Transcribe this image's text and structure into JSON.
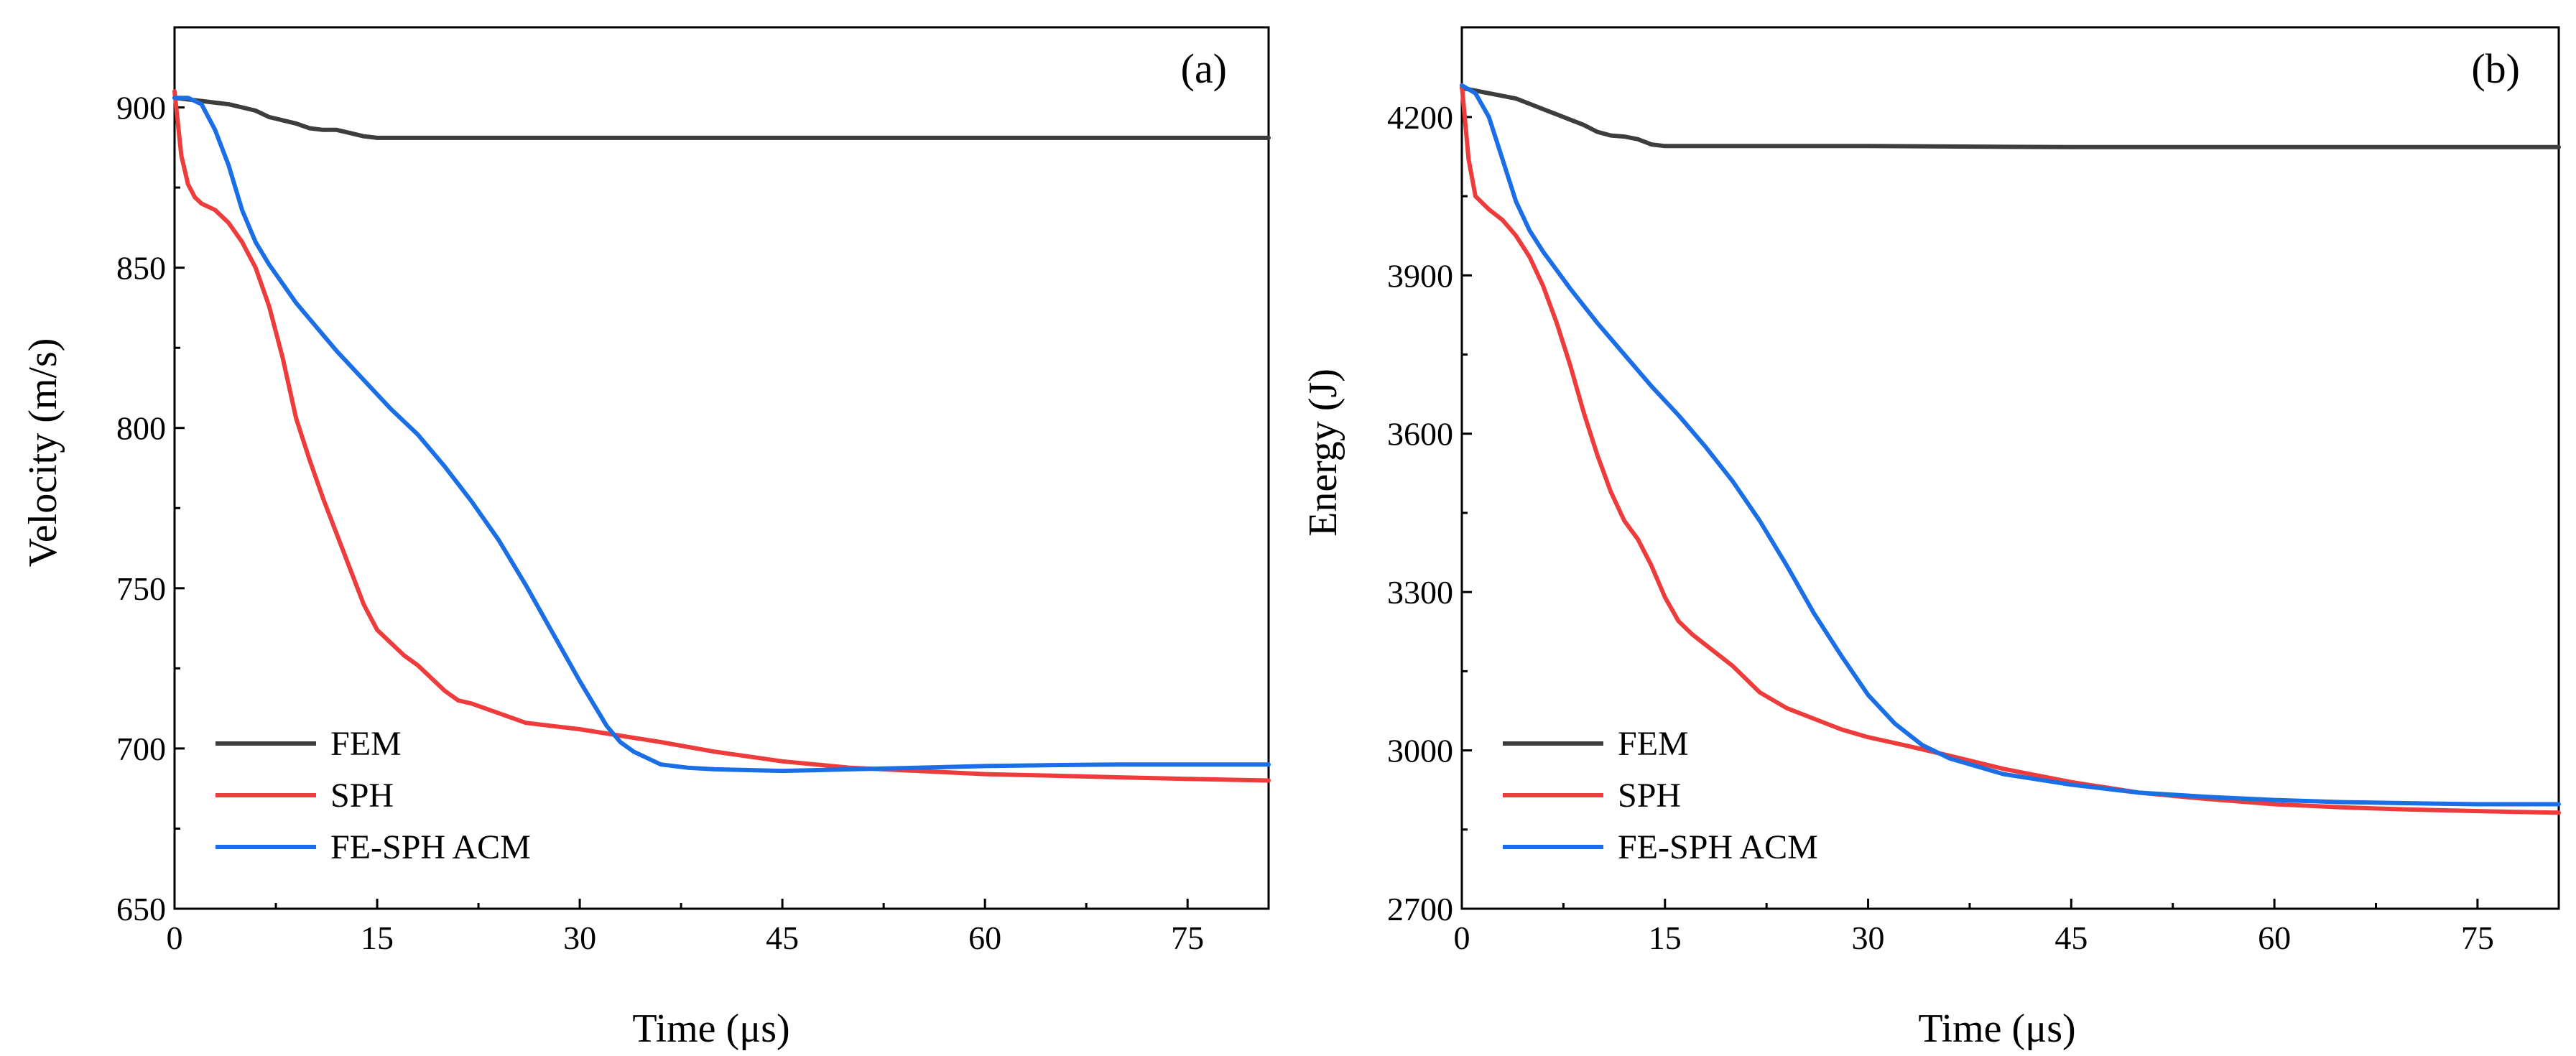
{
  "figure": {
    "description_labels": [
      "(a)",
      "(b)"
    ]
  },
  "chart_data": [
    {
      "type": "line",
      "panel": "(a)",
      "title": "",
      "xlabel": "Time (μs)",
      "ylabel": "Velocity (m/s)",
      "xlim": [
        0,
        81
      ],
      "ylim": [
        650,
        925
      ],
      "xticks": [
        0,
        15,
        30,
        45,
        60,
        75
      ],
      "yticks": [
        650,
        700,
        750,
        800,
        850,
        900
      ],
      "grid": false,
      "legend_position": "bottom-left",
      "series": [
        {
          "name": "FEM",
          "color": "#3d3d3d",
          "x": [
            0,
            2,
            4,
            5,
            6,
            7,
            8,
            9,
            10,
            11,
            12,
            13,
            14,
            15,
            16,
            20,
            30,
            45,
            60,
            75,
            81
          ],
          "y": [
            903,
            902,
            901,
            900,
            899,
            897,
            896,
            895,
            893.5,
            893,
            893,
            892,
            891,
            890.5,
            890.5,
            890.5,
            890.5,
            890.5,
            890.5,
            890.5,
            890.5
          ]
        },
        {
          "name": "SPH",
          "color": "#ee3b3b",
          "x": [
            0,
            0.5,
            1,
            1.5,
            2,
            3,
            4,
            5,
            6,
            7,
            8,
            9,
            10,
            11,
            12,
            13,
            14,
            15,
            16,
            17,
            18,
            19,
            20,
            21,
            22,
            24,
            26,
            28,
            30,
            33,
            36,
            40,
            45,
            50,
            55,
            60,
            65,
            70,
            75,
            81
          ],
          "y": [
            905,
            885,
            876,
            872,
            870,
            868,
            864,
            858,
            850,
            838,
            822,
            803,
            790,
            778,
            767,
            756,
            745,
            737,
            733,
            729,
            726,
            722,
            718,
            715,
            714,
            711,
            708,
            707,
            706,
            704,
            702,
            699,
            696,
            694,
            693,
            692,
            691.5,
            691,
            690.5,
            690
          ]
        },
        {
          "name": "FE-SPH ACM",
          "color": "#1a6fe6",
          "x": [
            0,
            1,
            2,
            3,
            4,
            5,
            6,
            7,
            8,
            9,
            10,
            11,
            12,
            14,
            16,
            18,
            20,
            22,
            24,
            26,
            28,
            30,
            31,
            32,
            33,
            34,
            35,
            36,
            38,
            40,
            45,
            50,
            55,
            60,
            65,
            70,
            75,
            81
          ],
          "y": [
            903,
            903,
            901,
            893,
            882,
            868,
            858,
            851,
            845,
            839,
            834,
            829,
            824,
            815,
            806,
            798,
            788,
            777,
            765,
            751,
            736,
            721,
            714,
            707,
            702,
            699,
            697,
            695,
            694,
            693.5,
            693,
            693.5,
            694,
            694.5,
            694.8,
            695,
            695,
            695
          ]
        }
      ]
    },
    {
      "type": "line",
      "panel": "(b)",
      "title": "",
      "xlabel": "Time (μs)",
      "ylabel": "Energy (J)",
      "xlim": [
        0,
        81
      ],
      "ylim": [
        2700,
        4370
      ],
      "xticks": [
        0,
        15,
        30,
        45,
        60,
        75
      ],
      "yticks": [
        2700,
        3000,
        3300,
        3600,
        3900,
        4200
      ],
      "grid": false,
      "legend_position": "bottom-left",
      "series": [
        {
          "name": "FEM",
          "color": "#3d3d3d",
          "x": [
            0,
            2,
            4,
            5,
            6,
            7,
            8,
            9,
            10,
            11,
            12,
            13,
            14,
            15,
            16,
            20,
            30,
            45,
            60,
            75,
            81
          ],
          "y": [
            4255,
            4245,
            4235,
            4225,
            4215,
            4205,
            4195,
            4185,
            4172,
            4165,
            4163,
            4158,
            4148,
            4145,
            4145,
            4145,
            4145,
            4143,
            4143,
            4143,
            4143
          ]
        },
        {
          "name": "SPH",
          "color": "#ee3b3b",
          "x": [
            0,
            0.5,
            1,
            2,
            3,
            4,
            5,
            6,
            7,
            8,
            9,
            10,
            11,
            12,
            13,
            14,
            15,
            16,
            17,
            18,
            20,
            22,
            24,
            26,
            28,
            30,
            33,
            36,
            40,
            45,
            50,
            55,
            60,
            65,
            70,
            75,
            81
          ],
          "y": [
            4260,
            4120,
            4050,
            4025,
            4005,
            3975,
            3935,
            3880,
            3810,
            3730,
            3640,
            3560,
            3490,
            3435,
            3400,
            3350,
            3290,
            3245,
            3220,
            3200,
            3160,
            3110,
            3080,
            3060,
            3040,
            3025,
            3008,
            2990,
            2965,
            2940,
            2920,
            2908,
            2898,
            2892,
            2888,
            2885,
            2882
          ]
        },
        {
          "name": "FE-SPH ACM",
          "color": "#1a6fe6",
          "x": [
            0,
            1,
            2,
            3,
            4,
            5,
            6,
            7,
            8,
            10,
            12,
            14,
            16,
            18,
            20,
            22,
            24,
            26,
            28,
            30,
            32,
            34,
            36,
            38,
            40,
            45,
            50,
            55,
            60,
            65,
            70,
            75,
            81
          ],
          "y": [
            4260,
            4245,
            4200,
            4120,
            4040,
            3985,
            3945,
            3910,
            3875,
            3810,
            3750,
            3690,
            3635,
            3575,
            3510,
            3435,
            3350,
            3260,
            3180,
            3105,
            3050,
            3010,
            2985,
            2970,
            2955,
            2935,
            2920,
            2912,
            2906,
            2902,
            2900,
            2898,
            2898
          ]
        }
      ]
    }
  ]
}
